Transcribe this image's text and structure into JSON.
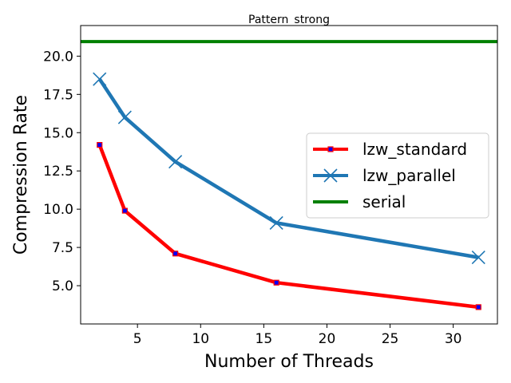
{
  "chart_data": {
    "type": "line",
    "title": "Pattern_strong",
    "xlabel": "Number of Threads",
    "ylabel": "Compression Rate",
    "xlim": [
      0.5,
      33.5
    ],
    "ylim": [
      2.5,
      22.0
    ],
    "xticks": [
      5,
      10,
      15,
      20,
      25,
      30
    ],
    "yticks": [
      5.0,
      7.5,
      10.0,
      12.5,
      15.0,
      17.5,
      20.0
    ],
    "ytick_labels": [
      "5.0",
      "7.5",
      "10.0",
      "12.5",
      "15.0",
      "17.5",
      "20.0"
    ],
    "grid": false,
    "legend_position": "center-right",
    "series": [
      {
        "name": "lzw_standard",
        "color": "#ff0000",
        "marker": "square",
        "marker_color": "#0000ff",
        "x": [
          2,
          4,
          8,
          16,
          32
        ],
        "values": [
          14.2,
          9.9,
          7.1,
          5.2,
          3.6
        ]
      },
      {
        "name": "lzw_parallel",
        "color": "#1f77b4",
        "marker": "x",
        "x": [
          2,
          4,
          8,
          16,
          32
        ],
        "values": [
          18.5,
          16.0,
          13.1,
          9.1,
          6.85
        ]
      },
      {
        "name": "serial",
        "color": "#008000",
        "marker": "none",
        "horizontal_line": true,
        "values": [
          20.95
        ]
      }
    ]
  }
}
